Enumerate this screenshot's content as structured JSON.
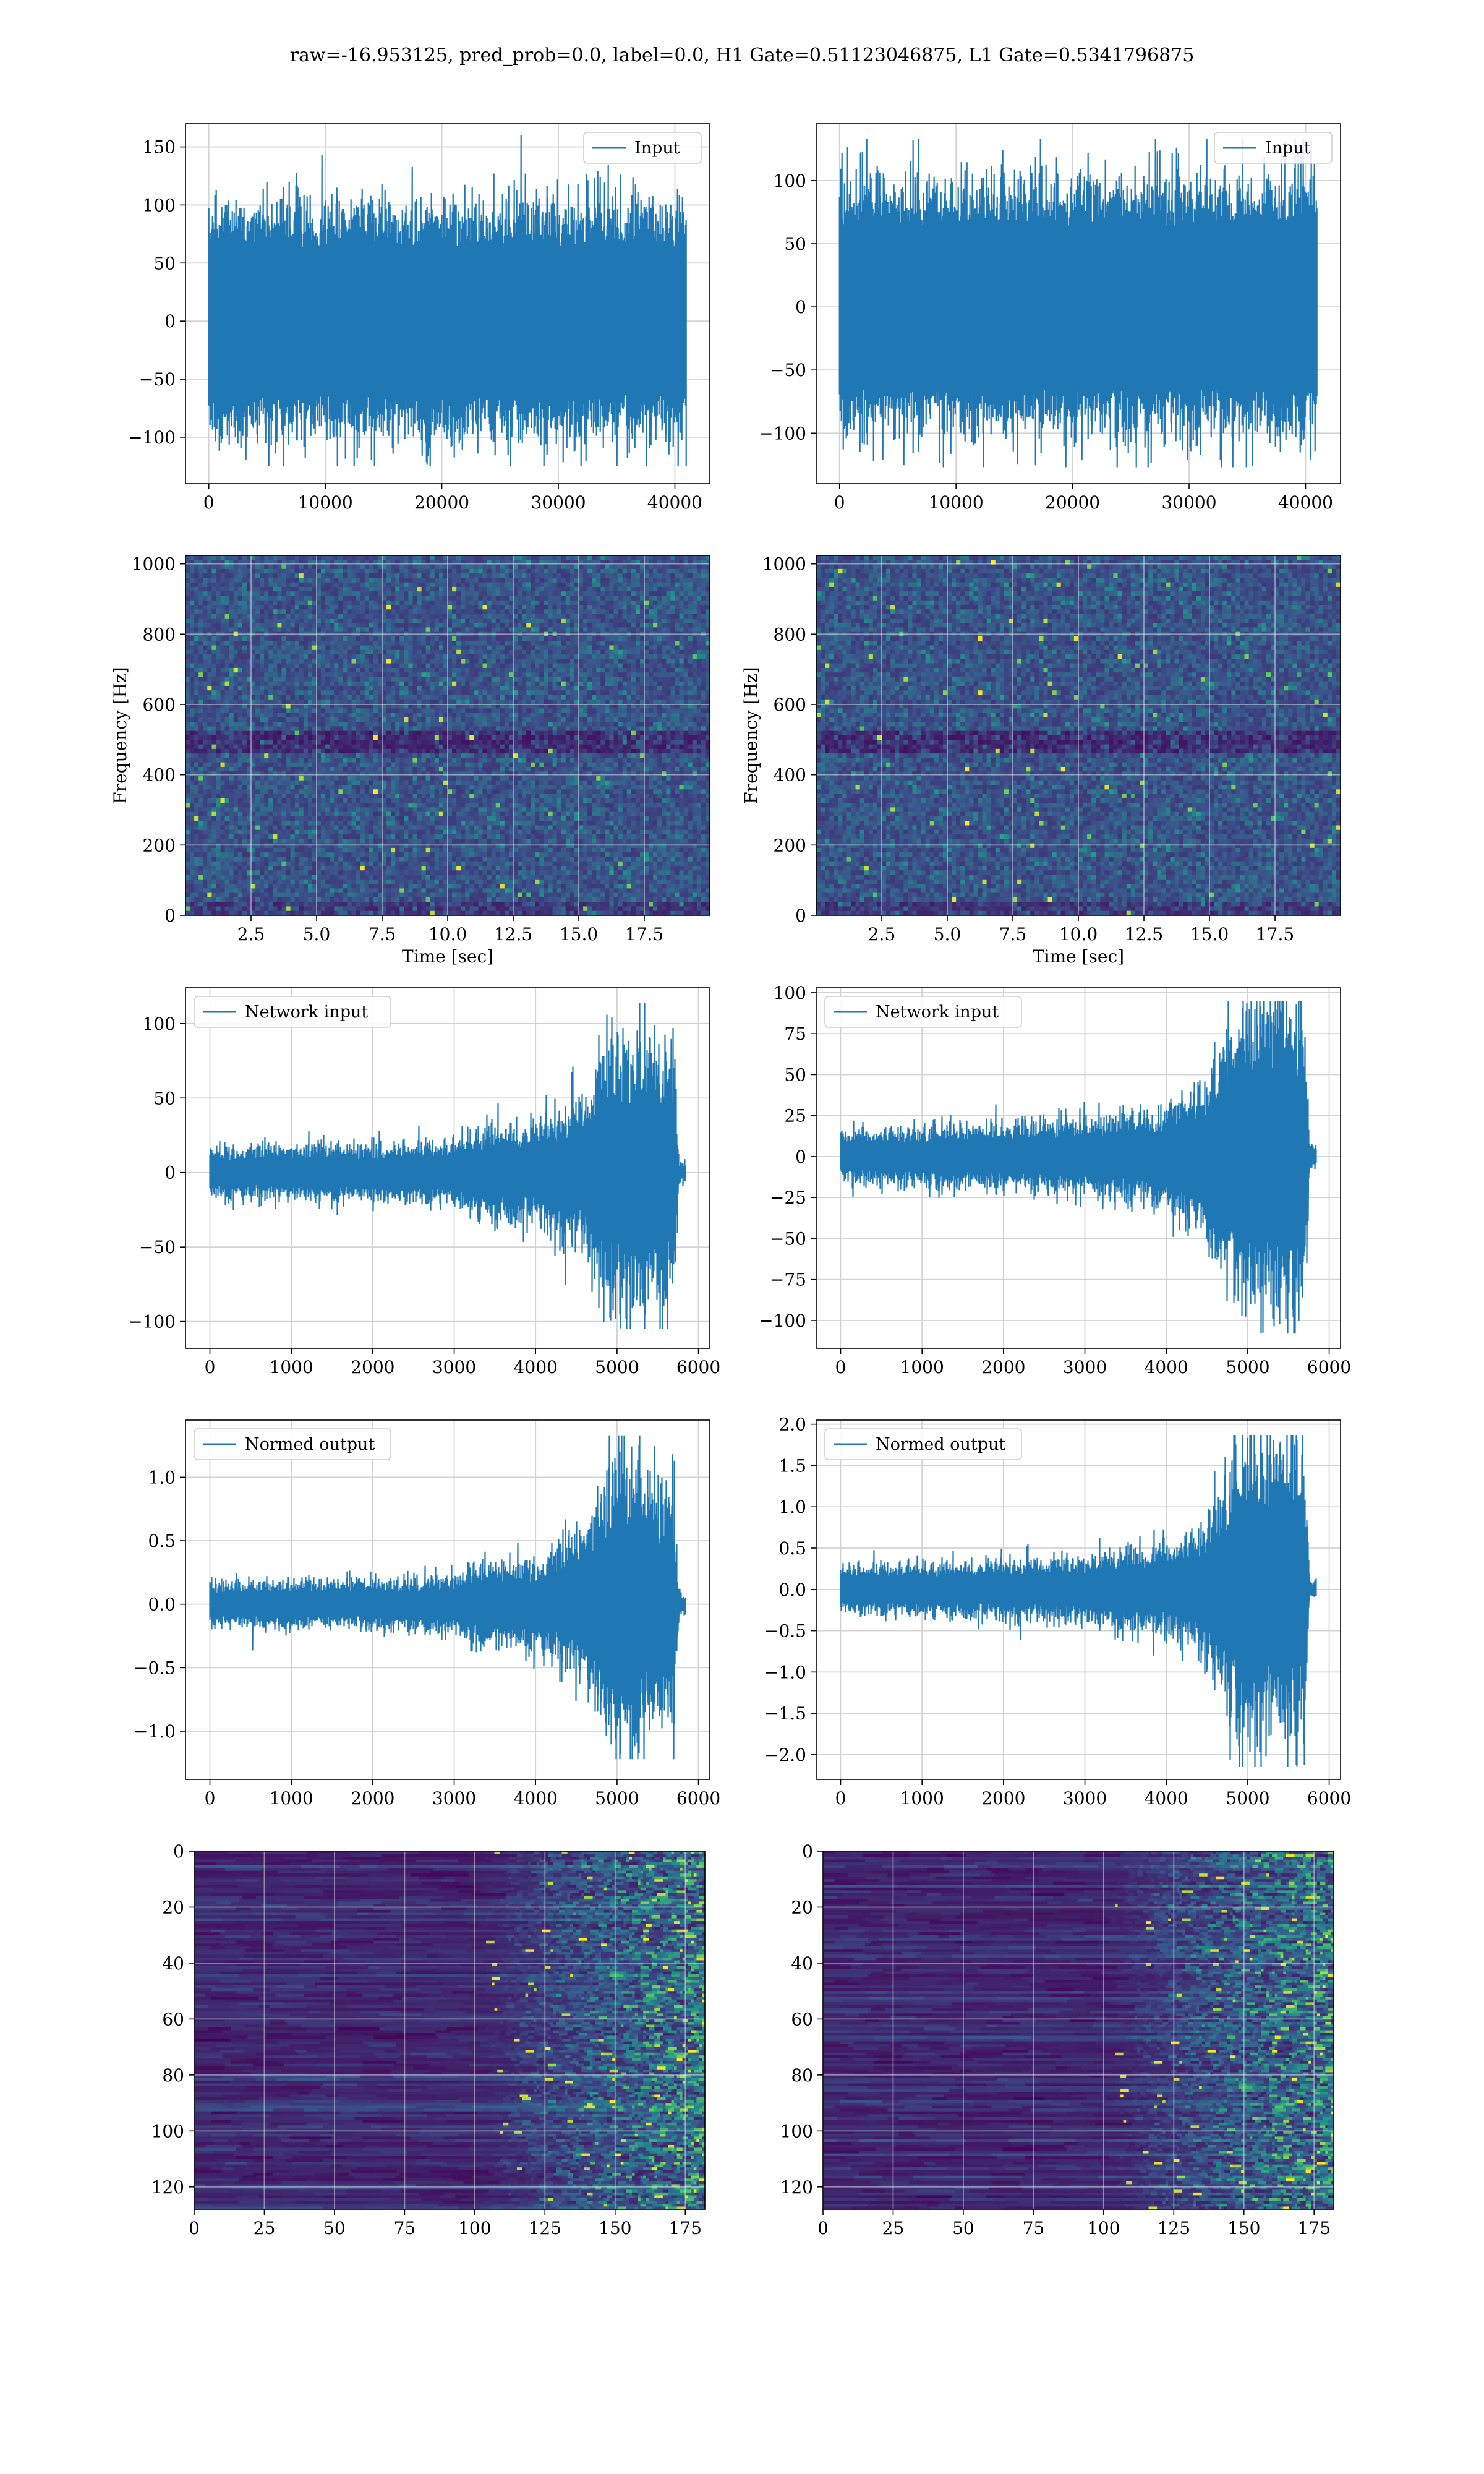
{
  "figure": {
    "suptitle": "raw=-16.953125, pred_prob=0.0, label=0.0, H1 Gate=0.51123046875, L1 Gate=0.5341796875"
  },
  "chart_data": [
    {
      "id": "input-h1",
      "type": "line",
      "series": [
        {
          "name": "Input",
          "color": "#1f77b4",
          "n_points": 40960,
          "center": 0,
          "typical_amplitude": 70,
          "min": -125,
          "max": 160
        }
      ],
      "xlim": [
        -2000,
        43000
      ],
      "ylim": [
        -140,
        170
      ],
      "xticks": [
        0,
        10000,
        20000,
        30000,
        40000
      ],
      "yticks": [
        -100,
        -50,
        0,
        50,
        100,
        150
      ],
      "legend": "upper right",
      "grid": true
    },
    {
      "id": "input-l1",
      "type": "line",
      "series": [
        {
          "name": "Input",
          "color": "#1f77b4",
          "n_points": 40960,
          "center": 0,
          "typical_amplitude": 70,
          "min": -127,
          "max": 133
        }
      ],
      "xlim": [
        -2000,
        43000
      ],
      "ylim": [
        -140,
        145
      ],
      "xticks": [
        0,
        10000,
        20000,
        30000,
        40000
      ],
      "yticks": [
        -100,
        -50,
        0,
        50,
        100
      ],
      "legend": "upper right",
      "grid": true
    },
    {
      "id": "spectrogram-h1",
      "type": "heatmap",
      "colormap": "viridis",
      "xlabel": "Time [sec]",
      "ylabel": "Frequency [Hz]",
      "xlim": [
        0,
        20
      ],
      "ylim": [
        0,
        1024
      ],
      "xticks": [
        2.5,
        5.0,
        7.5,
        10.0,
        12.5,
        15.0,
        17.5
      ],
      "yticks": [
        0,
        200,
        400,
        600,
        800,
        1000
      ],
      "grid": true
    },
    {
      "id": "spectrogram-l1",
      "type": "heatmap",
      "colormap": "viridis",
      "xlabel": "Time [sec]",
      "ylabel": "Frequency [Hz]",
      "xlim": [
        0,
        20
      ],
      "ylim": [
        0,
        1024
      ],
      "xticks": [
        2.5,
        5.0,
        7.5,
        10.0,
        12.5,
        15.0,
        17.5
      ],
      "yticks": [
        0,
        200,
        400,
        600,
        800,
        1000
      ],
      "grid": true
    },
    {
      "id": "network-input-h1",
      "type": "line",
      "series": [
        {
          "name": "Network input",
          "color": "#1f77b4",
          "n_points": 5840,
          "envelope": {
            "x": [
              0,
              1000,
              2000,
              3000,
              3400,
              4000,
              4600,
              4800,
              5000,
              5500,
              5700,
              5760,
              5840
            ],
            "amplitude": [
              15,
              15,
              16,
              18,
              28,
              28,
              45,
              70,
              85,
              75,
              70,
              6,
              6
            ]
          },
          "min": -105,
          "max": 114
        }
      ],
      "xlim": [
        -300,
        6140
      ],
      "ylim": [
        -118,
        124
      ],
      "xticks": [
        0,
        1000,
        2000,
        3000,
        4000,
        5000,
        6000
      ],
      "yticks": [
        -100,
        -50,
        0,
        50,
        100
      ],
      "legend": "upper left",
      "grid": true
    },
    {
      "id": "network-input-l1",
      "type": "line",
      "series": [
        {
          "name": "Network input",
          "color": "#1f77b4",
          "n_points": 5840,
          "envelope": {
            "x": [
              0,
              1000,
              2000,
              3000,
              3800,
              4400,
              4800,
              5000,
              5500,
              5700,
              5760,
              5840
            ],
            "amplitude": [
              14,
              15,
              17,
              20,
              25,
              35,
              70,
              80,
              85,
              80,
              6,
              6
            ]
          },
          "min": -108,
          "max": 95
        }
      ],
      "xlim": [
        -300,
        6140
      ],
      "ylim": [
        -117,
        103
      ],
      "xticks": [
        0,
        1000,
        2000,
        3000,
        4000,
        5000,
        6000
      ],
      "yticks": [
        -100,
        -75,
        -50,
        -25,
        0,
        25,
        50,
        75,
        100
      ],
      "legend": "upper left",
      "grid": true
    },
    {
      "id": "normed-output-h1",
      "type": "line",
      "series": [
        {
          "name": "Normed output",
          "color": "#1f77b4",
          "n_points": 5840,
          "envelope": {
            "x": [
              0,
              1000,
              2000,
              3000,
              3400,
              4000,
              4600,
              4800,
              5000,
              5500,
              5700,
              5760,
              5840
            ],
            "amplitude": [
              0.16,
              0.16,
              0.17,
              0.2,
              0.3,
              0.3,
              0.5,
              0.8,
              0.95,
              0.85,
              0.8,
              0.07,
              0.07
            ]
          },
          "min": -1.22,
          "max": 1.33
        }
      ],
      "xlim": [
        -300,
        6140
      ],
      "ylim": [
        -1.38,
        1.45
      ],
      "xticks": [
        0,
        1000,
        2000,
        3000,
        4000,
        5000,
        6000
      ],
      "yticks": [
        -1.0,
        -0.5,
        0.0,
        0.5,
        1.0
      ],
      "legend": "upper left",
      "grid": true
    },
    {
      "id": "normed-output-l1",
      "type": "line",
      "series": [
        {
          "name": "Normed output",
          "color": "#1f77b4",
          "n_points": 5840,
          "envelope": {
            "x": [
              0,
              1000,
              2000,
              3000,
              3800,
              4400,
              4800,
              5000,
              5500,
              5700,
              5760,
              5840
            ],
            "amplitude": [
              0.25,
              0.27,
              0.3,
              0.35,
              0.45,
              0.6,
              1.3,
              1.5,
              1.6,
              1.5,
              0.1,
              0.1
            ]
          },
          "min": -2.15,
          "max": 1.87
        }
      ],
      "xlim": [
        -300,
        6140
      ],
      "ylim": [
        -2.3,
        2.05
      ],
      "xticks": [
        0,
        1000,
        2000,
        3000,
        4000,
        5000,
        6000
      ],
      "yticks": [
        -2.0,
        -1.5,
        -1.0,
        -0.5,
        0.0,
        0.5,
        1.0,
        1.5,
        2.0
      ],
      "legend": "upper left",
      "grid": true
    },
    {
      "id": "feature-map-h1",
      "type": "heatmap",
      "colormap": "viridis",
      "rows": 128,
      "cols": 182,
      "xlim": [
        0,
        182
      ],
      "ylim": [
        128,
        0
      ],
      "xticks": [
        0,
        25,
        50,
        75,
        100,
        125,
        150,
        175
      ],
      "yticks": [
        0,
        20,
        40,
        60,
        80,
        100,
        120
      ],
      "grid": true
    },
    {
      "id": "feature-map-l1",
      "type": "heatmap",
      "colormap": "viridis",
      "rows": 128,
      "cols": 182,
      "xlim": [
        0,
        182
      ],
      "ylim": [
        128,
        0
      ],
      "xticks": [
        0,
        25,
        50,
        75,
        100,
        125,
        150,
        175
      ],
      "yticks": [
        0,
        20,
        40,
        60,
        80,
        100,
        120
      ],
      "grid": true
    }
  ]
}
